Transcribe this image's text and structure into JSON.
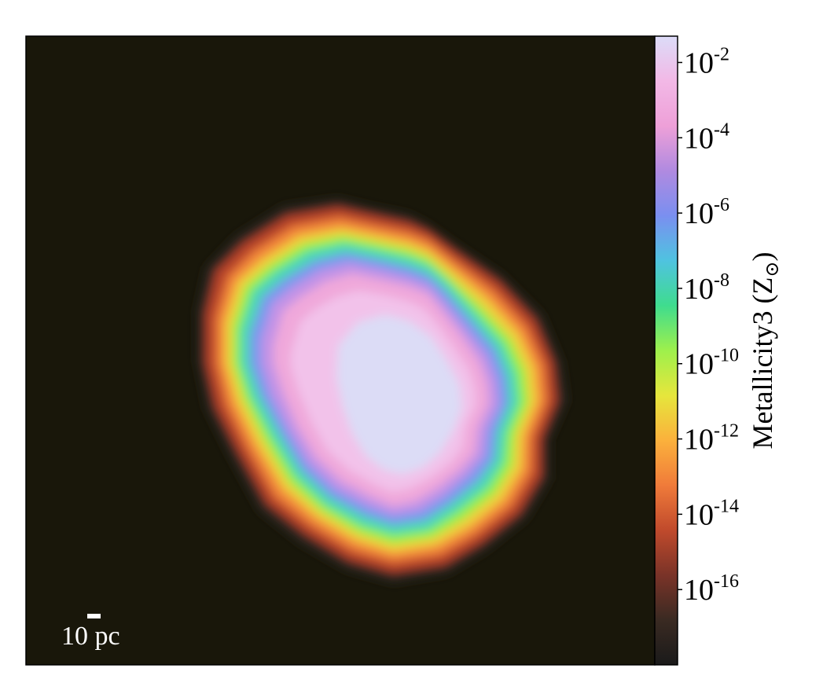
{
  "chart_data": {
    "type": "heatmap",
    "title": "",
    "colorbar": {
      "label": "Metallicity3",
      "unit_symbol": "Z",
      "scale": "log",
      "range": [
        1e-18,
        0.05
      ],
      "ticks": [
        {
          "value": 1e-16,
          "base": "10",
          "exp": "-16"
        },
        {
          "value": 1e-14,
          "base": "10",
          "exp": "-14"
        },
        {
          "value": 1e-12,
          "base": "10",
          "exp": "-12"
        },
        {
          "value": 1e-10,
          "base": "10",
          "exp": "-10"
        },
        {
          "value": 1e-08,
          "base": "10",
          "exp": "-8"
        },
        {
          "value": 1e-06,
          "base": "10",
          "exp": "-6"
        },
        {
          "value": 0.0001,
          "base": "10",
          "exp": "-4"
        },
        {
          "value": 0.01,
          "base": "10",
          "exp": "-2"
        }
      ],
      "colormap": [
        "#1a1a1a",
        "#3a2a22",
        "#7a3328",
        "#c04a2c",
        "#f07b3a",
        "#fbb13c",
        "#e6e63c",
        "#9ef04c",
        "#3fdc8e",
        "#4fc3e0",
        "#7a8ff0",
        "#b08ae0",
        "#eea0d8",
        "#f2b8e6",
        "#dcdcf8"
      ]
    },
    "background_color": "#19170a",
    "scale_bar": {
      "label": "10 pc"
    }
  }
}
